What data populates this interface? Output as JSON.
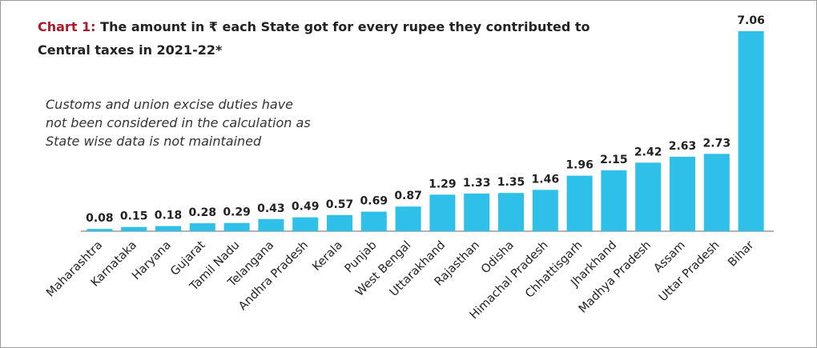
{
  "chart_data": {
    "type": "bar",
    "title_prefix": "Chart 1:",
    "title": [
      "The amount in ₹ each State got for every rupee they contributed to",
      "Central taxes in 2021-22*"
    ],
    "annotation": [
      "Customs and union excise duties have",
      "not been considered in the calculation as",
      "State wise data is not maintained"
    ],
    "categories": [
      "Maharashtra",
      "Karnataka",
      "Haryana",
      "Gujarat",
      "Tamil Nadu",
      "Telangana",
      "Andhra Pradesh",
      "Kerala",
      "Punjab",
      "West Bengal",
      "Uttarakhand",
      "Rajasthan",
      "Odisha",
      "Himachal Pradesh",
      "Chhattisgarh",
      "Jharkhand",
      "Madhya Pradesh",
      "Assam",
      "Uttar Pradesh",
      "Bihar"
    ],
    "values": [
      0.08,
      0.15,
      0.18,
      0.28,
      0.29,
      0.43,
      0.49,
      0.57,
      0.69,
      0.87,
      1.29,
      1.33,
      1.35,
      1.46,
      1.96,
      2.15,
      2.42,
      2.63,
      2.73,
      7.06
    ],
    "color": "#2ec0e9"
  }
}
